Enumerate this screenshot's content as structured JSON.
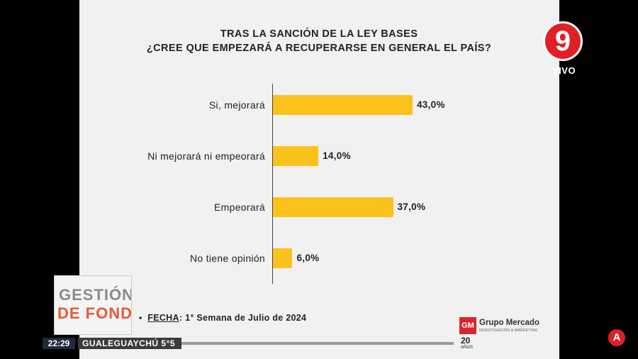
{
  "chart_data": {
    "type": "bar",
    "orientation": "horizontal",
    "title": "TRAS LA SANCIÓN DE LA LEY BASES",
    "subtitle": "¿CREE QUE EMPEZARÁ A RECUPERARSE EN GENERAL EL PAÍS?",
    "categories": [
      "Si, mejorará",
      "Ni mejorará ni empeorará",
      "Empeorará",
      "No tiene opinión"
    ],
    "values": [
      43.0,
      14.0,
      37.0,
      6.0
    ],
    "value_labels": [
      "43,0%",
      "14,0%",
      "37,0%",
      "6,0%"
    ],
    "xlim": [
      0,
      100
    ],
    "bar_color": "#fcc21c",
    "grid": false
  },
  "footer": {
    "fecha_label": "FECHA",
    "fecha_text": ": 1° Semana de Julio de 2024"
  },
  "brand": {
    "name": "Grupo Mercado",
    "tagline": "INVESTIGACIÓN & MARKETING",
    "box": "GM",
    "years": "20",
    "years_word": "AÑOS"
  },
  "channel": {
    "logo": "9",
    "live": "VIVO",
    "accent": "#e01f26"
  },
  "program": {
    "line1": "GESTIÓN",
    "line2": "DE FONDO"
  },
  "ticker": {
    "time": "22:29",
    "city_temp": "GUALEGUAYCHÚ 5°5"
  },
  "corner_logo": "A"
}
